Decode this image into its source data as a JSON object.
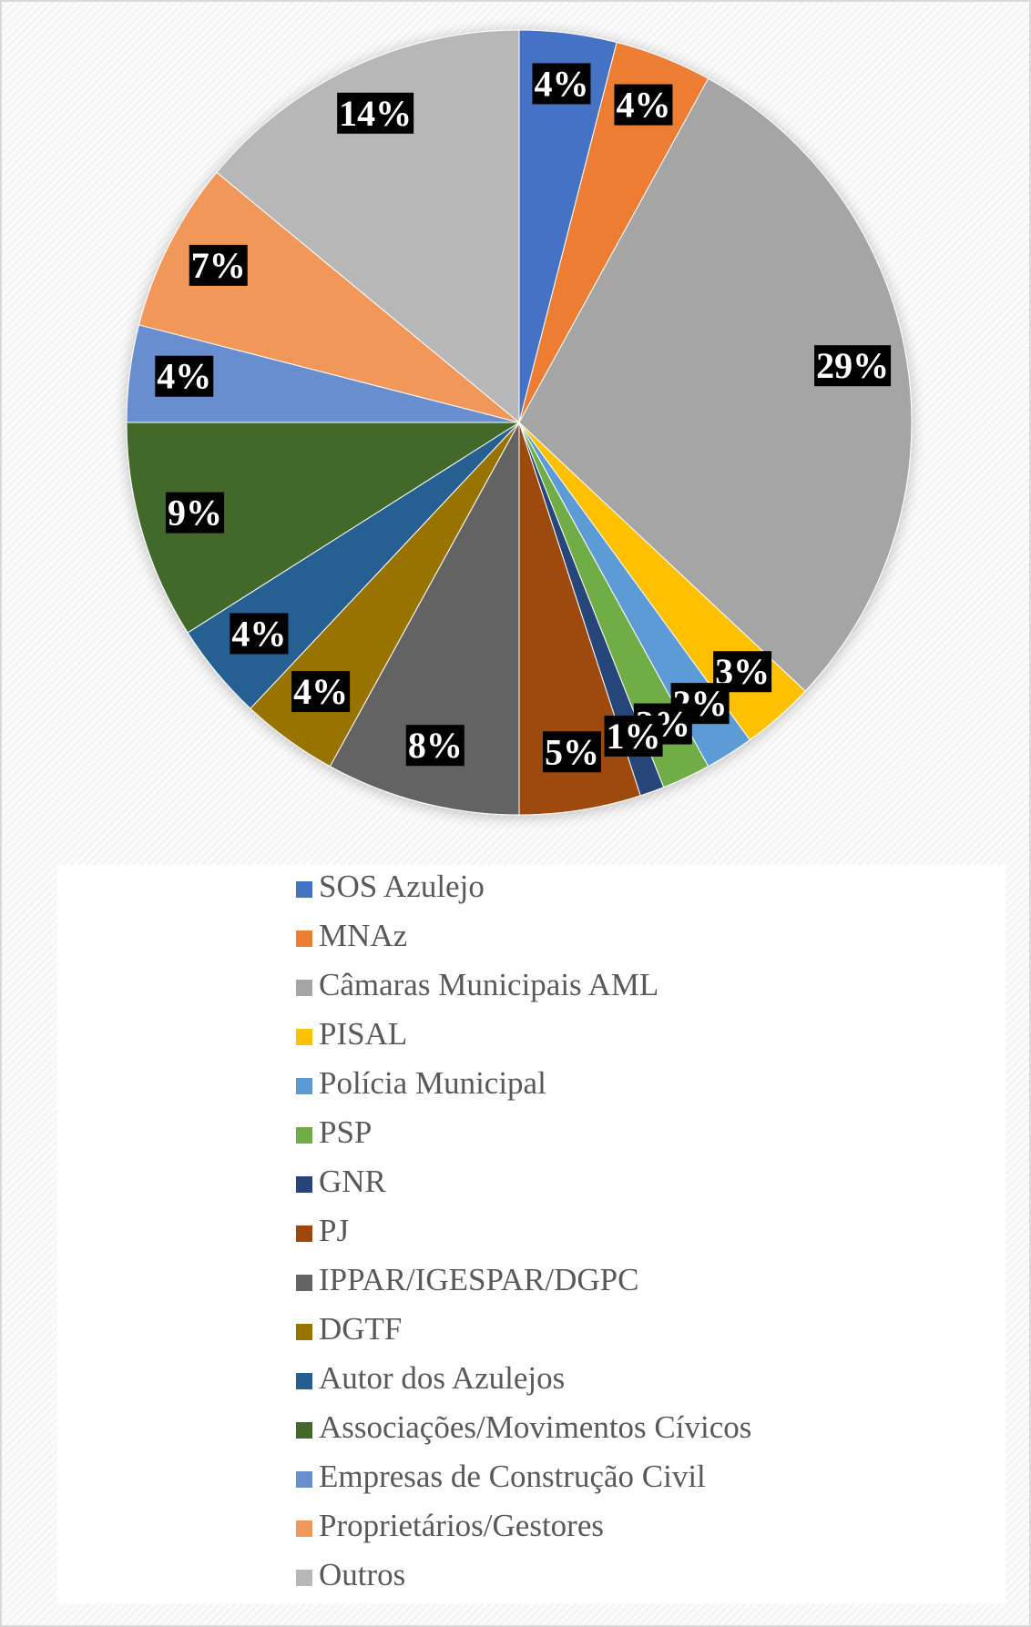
{
  "chart_data": {
    "type": "pie",
    "categories": [
      "SOS Azulejo",
      "MNAz",
      "Câmaras Municipais AML",
      "PISAL",
      "Polícia Municipal",
      "PSP",
      "GNR",
      "PJ",
      "IPPAR/IGESPAR/DGPC",
      "DGTF",
      "Autor dos Azulejos",
      "Associações/Movimentos Cívicos",
      "Empresas de Construção Civil",
      "Proprietários/Gestores",
      "Outros"
    ],
    "values": [
      4,
      4,
      29,
      3,
      2,
      2,
      1,
      5,
      8,
      4,
      4,
      9,
      4,
      7,
      14
    ],
    "value_labels": [
      "4%",
      "4%",
      "29%",
      "3%",
      "2%",
      "2%",
      "1%",
      "5%",
      "8%",
      "4%",
      "4%",
      "9%",
      "4%",
      "7%",
      "14%"
    ],
    "colors": [
      "#4472c4",
      "#ed7d31",
      "#a5a5a5",
      "#ffc000",
      "#5b9bd5",
      "#70ad47",
      "#264478",
      "#9e480e",
      "#636363",
      "#997300",
      "#255e91",
      "#43682b",
      "#698ed0",
      "#f1975a",
      "#b7b7b7"
    ],
    "legend": "bottom"
  }
}
